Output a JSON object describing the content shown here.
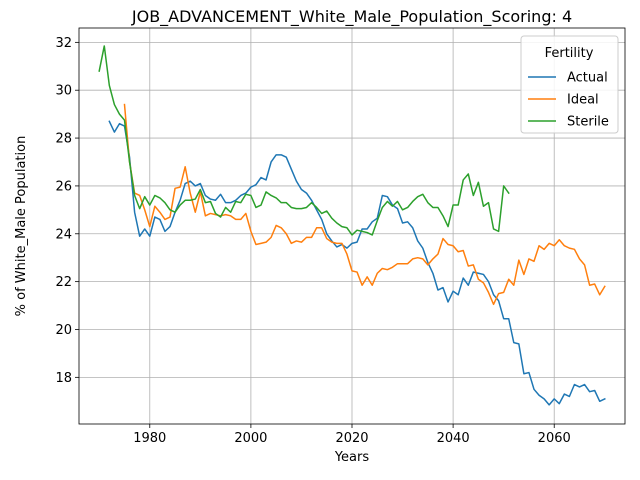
{
  "chart_data": {
    "type": "line",
    "title": "JOB_ADVANCEMENT_White_Male_Population_Scoring: 4",
    "xlabel": "Years",
    "ylabel": "% of White_Male Population",
    "xlim": [
      1966,
      2074
    ],
    "ylim": [
      16.05,
      32.6
    ],
    "xticks": [
      1980,
      2000,
      2020,
      2040,
      2060
    ],
    "yticks": [
      18,
      20,
      22,
      24,
      26,
      28,
      30,
      32
    ],
    "grid": true,
    "legend": {
      "title": "Fertility",
      "position": "top-right"
    },
    "series": [
      {
        "name": "Actual",
        "color": "#1f77b4",
        "x": [
          1972,
          1973,
          1974,
          1975,
          1976,
          1977,
          1978,
          1979,
          1980,
          1981,
          1982,
          1983,
          1984,
          1985,
          1986,
          1987,
          1988,
          1989,
          1990,
          1991,
          1992,
          1993,
          1994,
          1995,
          1996,
          1997,
          1998,
          1999,
          2000,
          2001,
          2002,
          2003,
          2004,
          2005,
          2006,
          2007,
          2008,
          2009,
          2010,
          2011,
          2012,
          2013,
          2014,
          2015,
          2016,
          2017,
          2018,
          2019,
          2020,
          2021,
          2022,
          2023,
          2024,
          2025,
          2026,
          2027,
          2028,
          2029,
          2030,
          2031,
          2032,
          2033,
          2034,
          2035,
          2036,
          2037,
          2038,
          2039,
          2040,
          2041,
          2042,
          2043,
          2044,
          2045,
          2046,
          2047,
          2048,
          2049,
          2050,
          2051,
          2052,
          2053,
          2054,
          2055,
          2056,
          2057,
          2058,
          2059,
          2060,
          2061,
          2062,
          2063,
          2064,
          2065,
          2066,
          2067,
          2068,
          2069,
          2070
        ],
        "values": [
          28.7,
          28.25,
          28.6,
          28.5,
          27.2,
          24.9,
          23.9,
          24.2,
          23.9,
          24.7,
          24.6,
          24.1,
          24.3,
          24.9,
          25.4,
          26.1,
          26.2,
          26.0,
          26.1,
          25.6,
          25.45,
          25.4,
          25.65,
          25.3,
          25.3,
          25.4,
          25.6,
          25.7,
          25.95,
          26.05,
          26.35,
          26.25,
          27.0,
          27.3,
          27.3,
          27.2,
          26.7,
          26.2,
          25.85,
          25.7,
          25.4,
          25.0,
          24.6,
          24.0,
          23.7,
          23.45,
          23.55,
          23.4,
          23.6,
          23.65,
          24.2,
          24.2,
          24.5,
          24.65,
          25.6,
          25.55,
          25.2,
          25.05,
          24.45,
          24.5,
          24.25,
          23.7,
          23.4,
          22.8,
          22.35,
          21.65,
          21.75,
          21.15,
          21.6,
          21.45,
          22.15,
          21.85,
          22.4,
          22.35,
          22.3,
          22.0,
          21.45,
          21.2,
          20.45,
          20.45,
          19.45,
          19.4,
          18.15,
          18.2,
          17.5,
          17.25,
          17.1,
          16.85,
          17.1,
          16.9,
          17.3,
          17.2,
          17.7,
          17.6,
          17.7,
          17.4,
          17.45,
          17.0,
          17.1
        ]
      },
      {
        "name": "Ideal",
        "color": "#ff7f0e",
        "x": [
          1975,
          1976,
          1977,
          1978,
          1979,
          1980,
          1981,
          1982,
          1983,
          1984,
          1985,
          1986,
          1987,
          1988,
          1989,
          1990,
          1991,
          1992,
          1993,
          1994,
          1995,
          1996,
          1997,
          1998,
          1999,
          2000,
          2001,
          2002,
          2003,
          2004,
          2005,
          2006,
          2007,
          2008,
          2009,
          2010,
          2011,
          2012,
          2013,
          2014,
          2015,
          2016,
          2017,
          2018,
          2019,
          2020,
          2021,
          2022,
          2023,
          2024,
          2025,
          2026,
          2027,
          2028,
          2029,
          2030,
          2031,
          2032,
          2033,
          2034,
          2035,
          2036,
          2037,
          2038,
          2039,
          2040,
          2041,
          2042,
          2043,
          2044,
          2045,
          2046,
          2047,
          2048,
          2049,
          2050,
          2051,
          2052,
          2053,
          2054,
          2055,
          2056,
          2057,
          2058,
          2059,
          2060,
          2061,
          2062,
          2063,
          2064,
          2065,
          2066,
          2067,
          2068,
          2069,
          2070
        ],
        "values": [
          29.4,
          27.0,
          25.7,
          25.6,
          25.0,
          24.3,
          25.15,
          24.9,
          24.6,
          24.7,
          25.9,
          25.95,
          26.8,
          25.7,
          24.9,
          25.75,
          24.75,
          24.85,
          24.8,
          24.75,
          24.8,
          24.75,
          24.6,
          24.6,
          24.85,
          24.1,
          23.55,
          23.6,
          23.65,
          23.85,
          24.35,
          24.25,
          24.0,
          23.6,
          23.7,
          23.65,
          23.85,
          23.85,
          24.25,
          24.25,
          23.8,
          23.65,
          23.6,
          23.6,
          23.15,
          22.45,
          22.4,
          21.85,
          22.2,
          21.85,
          22.35,
          22.55,
          22.5,
          22.6,
          22.75,
          22.75,
          22.75,
          22.95,
          23.0,
          22.95,
          22.7,
          22.95,
          23.15,
          23.8,
          23.55,
          23.5,
          23.25,
          23.3,
          22.65,
          22.7,
          22.1,
          21.95,
          21.55,
          21.05,
          21.5,
          21.55,
          22.1,
          21.85,
          22.9,
          22.3,
          22.95,
          22.85,
          23.5,
          23.35,
          23.6,
          23.5,
          23.75,
          23.5,
          23.4,
          23.35,
          22.95,
          22.7,
          21.85,
          21.9,
          21.45,
          21.8
        ]
      },
      {
        "name": "Sterile",
        "color": "#2ca02c",
        "x": [
          1970,
          1971,
          1972,
          1973,
          1974,
          1975,
          1976,
          1977,
          1978,
          1979,
          1980,
          1981,
          1982,
          1983,
          1984,
          1985,
          1986,
          1987,
          1988,
          1989,
          1990,
          1991,
          1992,
          1993,
          1994,
          1995,
          1996,
          1997,
          1998,
          1999,
          2000,
          2001,
          2002,
          2003,
          2004,
          2005,
          2006,
          2007,
          2008,
          2009,
          2010,
          2011,
          2012,
          2013,
          2014,
          2015,
          2016,
          2017,
          2018,
          2019,
          2020,
          2021,
          2022,
          2023,
          2024,
          2025,
          2026,
          2027,
          2028,
          2029,
          2030,
          2031,
          2032,
          2033,
          2034,
          2035,
          2036,
          2037,
          2038,
          2039,
          2040,
          2041,
          2042,
          2043,
          2044,
          2045,
          2046,
          2047,
          2048,
          2049,
          2050,
          2051
        ],
        "values": [
          30.8,
          31.85,
          30.2,
          29.4,
          29.0,
          28.75,
          27.0,
          25.6,
          25.05,
          25.55,
          25.2,
          25.6,
          25.5,
          25.3,
          25.0,
          24.9,
          25.2,
          25.4,
          25.4,
          25.45,
          25.85,
          25.3,
          25.35,
          24.85,
          24.7,
          25.1,
          24.9,
          25.35,
          25.3,
          25.65,
          25.6,
          25.1,
          25.2,
          25.75,
          25.6,
          25.5,
          25.3,
          25.3,
          25.1,
          25.05,
          25.05,
          25.1,
          25.3,
          25.1,
          24.85,
          24.95,
          24.65,
          24.45,
          24.3,
          24.25,
          23.95,
          24.15,
          24.1,
          24.05,
          23.95,
          24.55,
          25.1,
          25.35,
          25.15,
          25.35,
          25.0,
          25.1,
          25.35,
          25.55,
          25.65,
          25.3,
          25.1,
          25.1,
          24.75,
          24.3,
          25.2,
          25.2,
          26.25,
          26.5,
          25.6,
          26.15,
          25.15,
          25.3,
          24.2,
          24.1,
          26.0,
          25.7
        ]
      }
    ]
  }
}
